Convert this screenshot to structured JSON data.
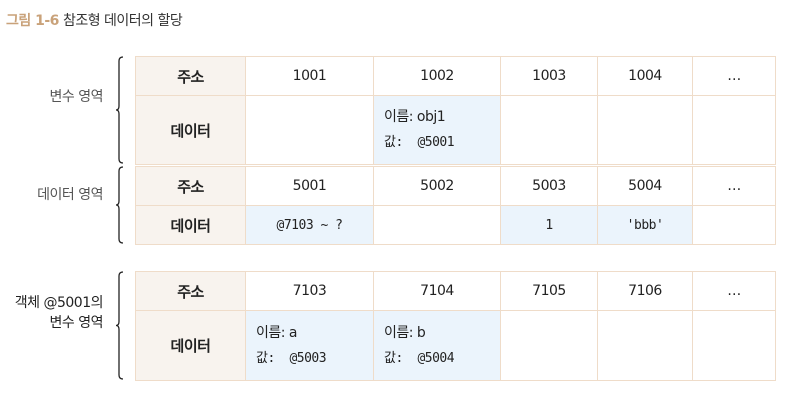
{
  "title": {
    "figure": "그림 1-6",
    "text": "참조형 데이터의 할당"
  },
  "header_labels": {
    "address": "주소",
    "data": "데이터"
  },
  "groups": [
    {
      "label": "변수 영역",
      "addresses": [
        "1001",
        "1002",
        "1003",
        "1004",
        "…"
      ],
      "cells": [
        {},
        {
          "name": "이름: obj1",
          "value": "값:  @5001"
        },
        {},
        {},
        {}
      ]
    },
    {
      "label": "데이터 영역",
      "addresses": [
        "5001",
        "5002",
        "5003",
        "5004",
        "…"
      ],
      "cells": [
        {
          "text": "@7103 ~ ?"
        },
        {},
        {
          "text": "1"
        },
        {
          "text": "'bbb'"
        },
        {}
      ]
    },
    {
      "label": "객체 @5001의 변수 영역",
      "label_lines": [
        "객체 @5001의",
        "변수 영역"
      ],
      "addresses": [
        "7103",
        "7104",
        "7105",
        "7106",
        "…"
      ],
      "cells": [
        {
          "name": "이름: a",
          "value": "값:  @5003"
        },
        {
          "name": "이름: b",
          "value": "값:  @5004"
        },
        {},
        {},
        {}
      ]
    }
  ],
  "colors": {
    "accent": "#c9a27a",
    "header_bg": "#f8f3ee",
    "highlight_bg": "#ebf4fc",
    "border": "#efdcc9"
  }
}
